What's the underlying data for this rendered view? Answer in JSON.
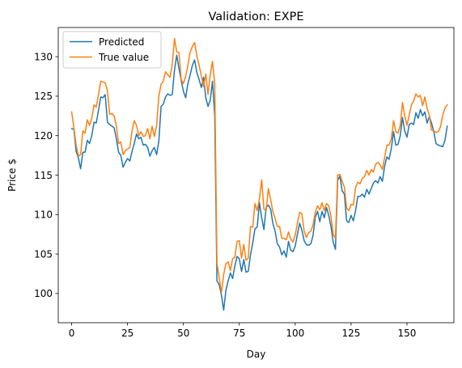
{
  "chart_data": {
    "type": "line",
    "title": "Validation: EXPE",
    "xlabel": "Day",
    "ylabel": "Price $",
    "xlim": [
      -6,
      171
    ],
    "ylim": [
      96.3,
      133.7
    ],
    "xticks": [
      0,
      25,
      50,
      75,
      100,
      125,
      150
    ],
    "yticks": [
      100,
      105,
      110,
      115,
      120,
      125,
      130
    ],
    "grid": false,
    "legend_position": "top-left",
    "series": [
      {
        "name": "Predicted",
        "color": "#1f77b4",
        "values": [
          120.9,
          120.8,
          118.0,
          117.2,
          115.8,
          117.9,
          117.9,
          119.4,
          119.0,
          120.0,
          121.7,
          121.6,
          123.2,
          124.9,
          124.8,
          125.2,
          121.7,
          121.4,
          121.2,
          121.0,
          119.6,
          117.9,
          117.5,
          116.0,
          116.6,
          117.1,
          116.8,
          118.0,
          119.0,
          120.2,
          119.6,
          119.8,
          118.8,
          118.9,
          118.5,
          117.4,
          118.1,
          118.5,
          117.6,
          119.3,
          123.7,
          124.0,
          124.9,
          125.3,
          125.1,
          125.2,
          128.3,
          130.2,
          128.5,
          127.0,
          125.6,
          124.8,
          126.6,
          127.7,
          128.9,
          129.6,
          128.0,
          127.1,
          126.1,
          127.4,
          124.8,
          123.7,
          124.5,
          126.9,
          122.5,
          101.6,
          101.1,
          99.8,
          97.9,
          100.4,
          101.6,
          102.6,
          101.9,
          103.5,
          104.7,
          104.4,
          102.8,
          104.3,
          102.7,
          102.8,
          104.9,
          106.4,
          108.2,
          108.4,
          111.5,
          109.6,
          108.1,
          110.9,
          111.2,
          110.7,
          108.9,
          107.9,
          106.3,
          105.9,
          104.9,
          105.4,
          104.6,
          106.6,
          105.5,
          105.3,
          106.0,
          107.5,
          108.9,
          108.0,
          106.7,
          106.2,
          106.1,
          106.3,
          107.4,
          109.7,
          110.4,
          109.1,
          110.4,
          109.6,
          110.9,
          109.9,
          108.5,
          106.5,
          105.6,
          114.3,
          114.9,
          113.0,
          112.6,
          109.2,
          109.0,
          109.9,
          109.2,
          110.5,
          112.3,
          112.3,
          112.6,
          112.2,
          113.2,
          112.6,
          113.3,
          114.0,
          114.3,
          114.0,
          114.8,
          114.2,
          116.1,
          117.3,
          117.0,
          118.4,
          120.5,
          118.8,
          118.9,
          120.0,
          122.3,
          120.6,
          119.8,
          121.4,
          121.6,
          121.4,
          122.9,
          122.2,
          123.3,
          122.5,
          123.0,
          121.6,
          122.4,
          121.6,
          120.5,
          119.0,
          118.8,
          118.7,
          118.6,
          119.4,
          121.2
        ]
      },
      {
        "name": "True value",
        "color": "#ff7f0e",
        "values": [
          123.0,
          121.0,
          118.8,
          117.4,
          117.6,
          120.6,
          120.3,
          122.0,
          121.3,
          122.2,
          123.9,
          123.6,
          125.2,
          126.9,
          126.8,
          126.7,
          125.7,
          122.7,
          122.8,
          122.5,
          121.2,
          119.0,
          119.2,
          117.6,
          118.1,
          118.3,
          118.5,
          120.6,
          121.9,
          121.3,
          120.0,
          120.5,
          119.9,
          120.0,
          120.9,
          119.6,
          121.2,
          119.9,
          121.3,
          125.0,
          126.5,
          126.9,
          128.1,
          127.7,
          127.4,
          129.0,
          132.3,
          130.6,
          130.5,
          127.1,
          126.6,
          127.5,
          128.9,
          130.6,
          131.3,
          131.8,
          130.1,
          128.9,
          127.6,
          126.2,
          127.8,
          125.2,
          127.7,
          129.4,
          126.6,
          103.8,
          102.0,
          100.1,
          102.4,
          103.8,
          104.0,
          102.9,
          104.4,
          104.6,
          106.6,
          106.7,
          104.5,
          106.2,
          104.2,
          104.5,
          108.5,
          108.4,
          111.4,
          110.5,
          112.0,
          114.4,
          110.7,
          110.5,
          113.3,
          111.9,
          110.4,
          109.5,
          108.5,
          108.5,
          107.0,
          107.0,
          106.8,
          107.8,
          106.9,
          106.5,
          107.4,
          108.9,
          110.3,
          110.1,
          107.9,
          107.1,
          107.7,
          107.9,
          108.7,
          110.3,
          111.1,
          110.6,
          111.5,
          110.5,
          111.4,
          111.1,
          109.8,
          107.5,
          107.0,
          115.0,
          115.1,
          114.2,
          113.5,
          110.8,
          110.5,
          111.3,
          111.2,
          113.4,
          114.1,
          113.9,
          114.6,
          114.8,
          115.6,
          115.0,
          115.7,
          115.4,
          116.4,
          116.6,
          116.3,
          115.7,
          117.2,
          118.8,
          118.8,
          119.6,
          121.9,
          120.5,
          120.3,
          121.3,
          124.2,
          122.5,
          121.3,
          122.6,
          123.9,
          124.4,
          125.3,
          124.9,
          125.1,
          123.8,
          124.9,
          123.5,
          122.6,
          120.7,
          120.6,
          120.4,
          120.5,
          121.1,
          122.6,
          123.5,
          123.9
        ]
      }
    ]
  }
}
